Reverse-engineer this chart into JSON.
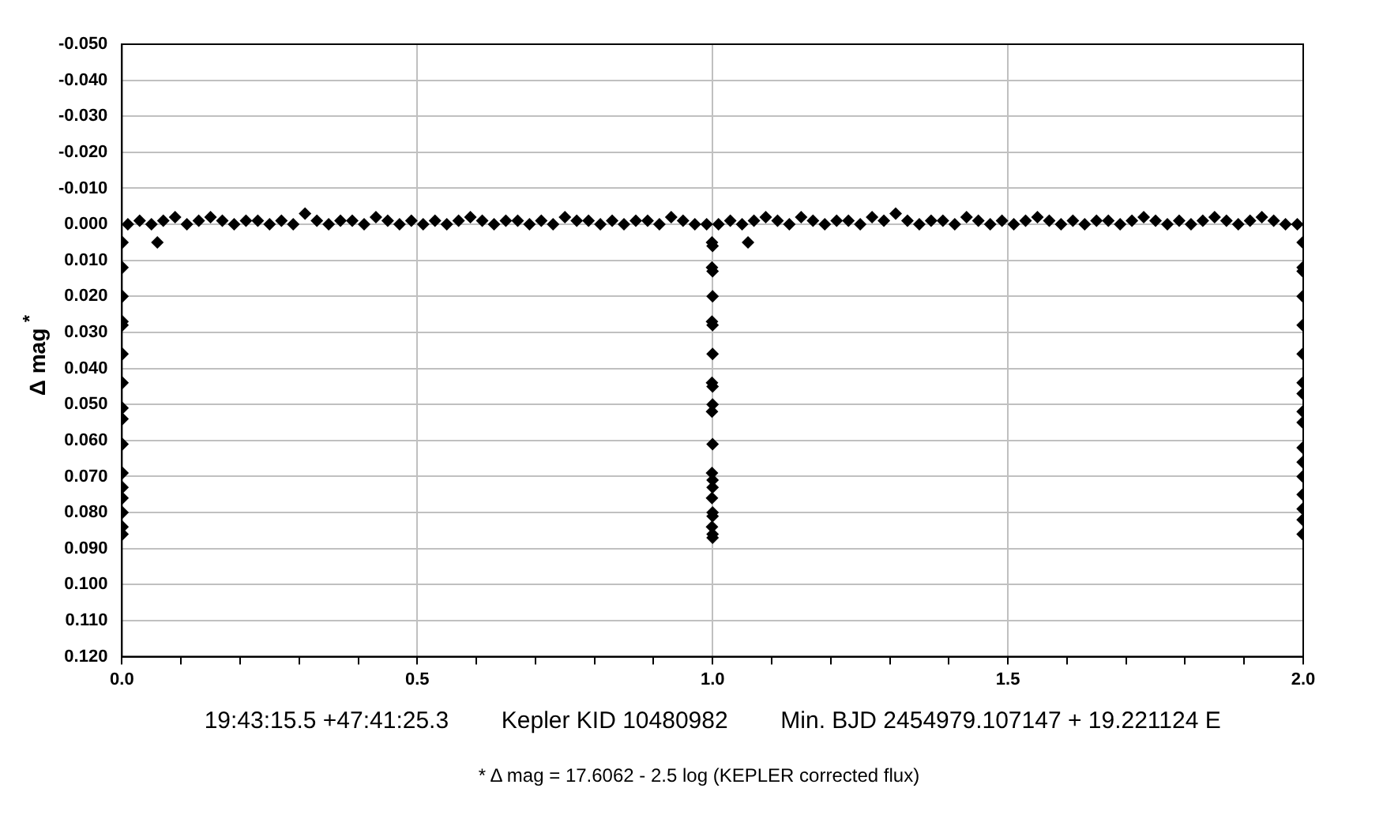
{
  "chart_data": {
    "type": "scatter",
    "xlabel": "19:43:15.5 +47:41:25.3        Kepler KID 10480982        Min. BJD 2454979.107147 + 19.221124 E",
    "ylabel": "Δ mag $^{*}$",
    "annotations": [
      "* Δ mag = 17.6062 - 2.5 log (KEPLER corrected flux)"
    ],
    "series": [
      {
        "color": "#000000",
        "marker": "diamond",
        "x": [
          0.01,
          0.03,
          0.05,
          0.07,
          0.09,
          0.11,
          0.13,
          0.15,
          0.17,
          0.19,
          0.21,
          0.23,
          0.25,
          0.27,
          0.29,
          0.31,
          0.33,
          0.35,
          0.37,
          0.39,
          0.41,
          0.43,
          0.45,
          0.47,
          0.49,
          0.51,
          0.53,
          0.55,
          0.57,
          0.59,
          0.61,
          0.63,
          0.65,
          0.67,
          0.69,
          0.71,
          0.73,
          0.75,
          0.77,
          0.79,
          0.81,
          0.83,
          0.85,
          0.87,
          0.89,
          0.91,
          0.93,
          0.95,
          0.97,
          0.99,
          1.01,
          1.03,
          1.05,
          1.07,
          1.09,
          1.11,
          1.13,
          1.15,
          1.17,
          1.19,
          1.21,
          1.23,
          1.25,
          1.27,
          1.29,
          1.31,
          1.33,
          1.35,
          1.37,
          1.39,
          1.41,
          1.43,
          1.45,
          1.47,
          1.49,
          1.51,
          1.53,
          1.55,
          1.57,
          1.59,
          1.61,
          1.63,
          1.65,
          1.67,
          1.69,
          1.71,
          1.73,
          1.75,
          1.77,
          1.79,
          1.81,
          1.83,
          1.85,
          1.87,
          1.89,
          1.91,
          1.93,
          1.95,
          1.97,
          1.99,
          0.001,
          0.001,
          0.001,
          0.001,
          0.001,
          0.001,
          0.001,
          0.001,
          0.001,
          0.001,
          0.001,
          0.001,
          0.001,
          0.001,
          0.001,
          0.001,
          0.999,
          1.0,
          0.999,
          1.0,
          1.0,
          0.999,
          1.0,
          1.0,
          0.999,
          1.0,
          1.0,
          0.999,
          1.0,
          0.999,
          1.0,
          1.0,
          0.999,
          1.0,
          1.0,
          0.999,
          1.0,
          1.0,
          1.999,
          1.999,
          1.999,
          1.999,
          1.999,
          1.999,
          1.999,
          1.999,
          1.999,
          1.999,
          1.999,
          1.999,
          1.999,
          1.999,
          1.999,
          1.999,
          1.999,
          0.06,
          1.06
        ],
        "values": [
          0.0,
          -0.001,
          0.0,
          -0.001,
          -0.002,
          0.0,
          -0.001,
          -0.002,
          -0.001,
          0.0,
          -0.001,
          -0.001,
          0.0,
          -0.001,
          0.0,
          -0.003,
          -0.001,
          0.0,
          -0.001,
          -0.001,
          0.0,
          -0.002,
          -0.001,
          0.0,
          -0.001,
          0.0,
          -0.001,
          0.0,
          -0.001,
          -0.002,
          -0.001,
          0.0,
          -0.001,
          -0.001,
          0.0,
          -0.001,
          0.0,
          -0.002,
          -0.001,
          -0.001,
          0.0,
          -0.001,
          0.0,
          -0.001,
          -0.001,
          0.0,
          -0.002,
          -0.001,
          0.0,
          0.0,
          0.0,
          -0.001,
          0.0,
          -0.001,
          -0.002,
          -0.001,
          0.0,
          -0.002,
          -0.001,
          0.0,
          -0.001,
          -0.001,
          0.0,
          -0.002,
          -0.001,
          -0.003,
          -0.001,
          0.0,
          -0.001,
          -0.001,
          0.0,
          -0.002,
          -0.001,
          0.0,
          -0.001,
          0.0,
          -0.001,
          -0.002,
          -0.001,
          0.0,
          -0.001,
          0.0,
          -0.001,
          -0.001,
          0.0,
          -0.001,
          -0.002,
          -0.001,
          0.0,
          -0.001,
          0.0,
          -0.001,
          -0.002,
          -0.001,
          0.0,
          -0.001,
          -0.002,
          -0.001,
          0.0,
          0.0,
          0.005,
          0.012,
          0.02,
          0.027,
          0.028,
          0.036,
          0.044,
          0.051,
          0.054,
          0.061,
          0.069,
          0.073,
          0.076,
          0.08,
          0.084,
          0.086,
          0.005,
          0.006,
          0.012,
          0.013,
          0.02,
          0.027,
          0.028,
          0.036,
          0.044,
          0.045,
          0.05,
          0.052,
          0.061,
          0.069,
          0.071,
          0.073,
          0.076,
          0.08,
          0.081,
          0.084,
          0.086,
          0.087,
          0.005,
          0.012,
          0.013,
          0.02,
          0.028,
          0.036,
          0.044,
          0.047,
          0.052,
          0.055,
          0.062,
          0.066,
          0.07,
          0.075,
          0.079,
          0.082,
          0.086,
          0.005,
          0.005
        ]
      }
    ],
    "xlim": [
      0,
      2
    ],
    "xticks": [
      {
        "value": 0,
        "label": "0.0"
      },
      {
        "value": 0.1,
        "label": null
      },
      {
        "value": 0.2,
        "label": null
      },
      {
        "value": 0.3,
        "label": null
      },
      {
        "value": 0.4,
        "label": null
      },
      {
        "value": 0.5,
        "label": "0.5"
      },
      {
        "value": 0.6,
        "label": null
      },
      {
        "value": 0.7,
        "label": null
      },
      {
        "value": 0.8,
        "label": null
      },
      {
        "value": 0.9,
        "label": null
      },
      {
        "value": 1,
        "label": "1.0"
      },
      {
        "value": 1.1,
        "label": null
      },
      {
        "value": 1.2,
        "label": null
      },
      {
        "value": 1.3,
        "label": null
      },
      {
        "value": 1.4,
        "label": null
      },
      {
        "value": 1.5,
        "label": "1.5"
      },
      {
        "value": 1.6,
        "label": null
      },
      {
        "value": 1.7,
        "label": null
      },
      {
        "value": 1.8,
        "label": null
      },
      {
        "value": 1.9,
        "label": null
      },
      {
        "value": 2,
        "label": "2.0"
      }
    ],
    "ylim": [
      0.12,
      -0.05
    ],
    "yticks": [
      {
        "value": -0.05,
        "label": "-0.050"
      },
      {
        "value": -0.04,
        "label": "-0.040"
      },
      {
        "value": -0.03,
        "label": "-0.030"
      },
      {
        "value": -0.02,
        "label": "-0.020"
      },
      {
        "value": -0.01,
        "label": "-0.010"
      },
      {
        "value": 0,
        "label": "0.000"
      },
      {
        "value": 0.01,
        "label": "0.010"
      },
      {
        "value": 0.02,
        "label": "0.020"
      },
      {
        "value": 0.03,
        "label": "0.030"
      },
      {
        "value": 0.04,
        "label": "0.040"
      },
      {
        "value": 0.05,
        "label": "0.050"
      },
      {
        "value": 0.06,
        "label": "0.060"
      },
      {
        "value": 0.07,
        "label": "0.070"
      },
      {
        "value": 0.08,
        "label": "0.080"
      },
      {
        "value": 0.09,
        "label": "0.090"
      },
      {
        "value": 0.1,
        "label": "0.100"
      },
      {
        "value": 0.11,
        "label": "0.110"
      },
      {
        "value": 0.12,
        "label": "0.120"
      }
    ],
    "grid": true,
    "legend": false
  }
}
